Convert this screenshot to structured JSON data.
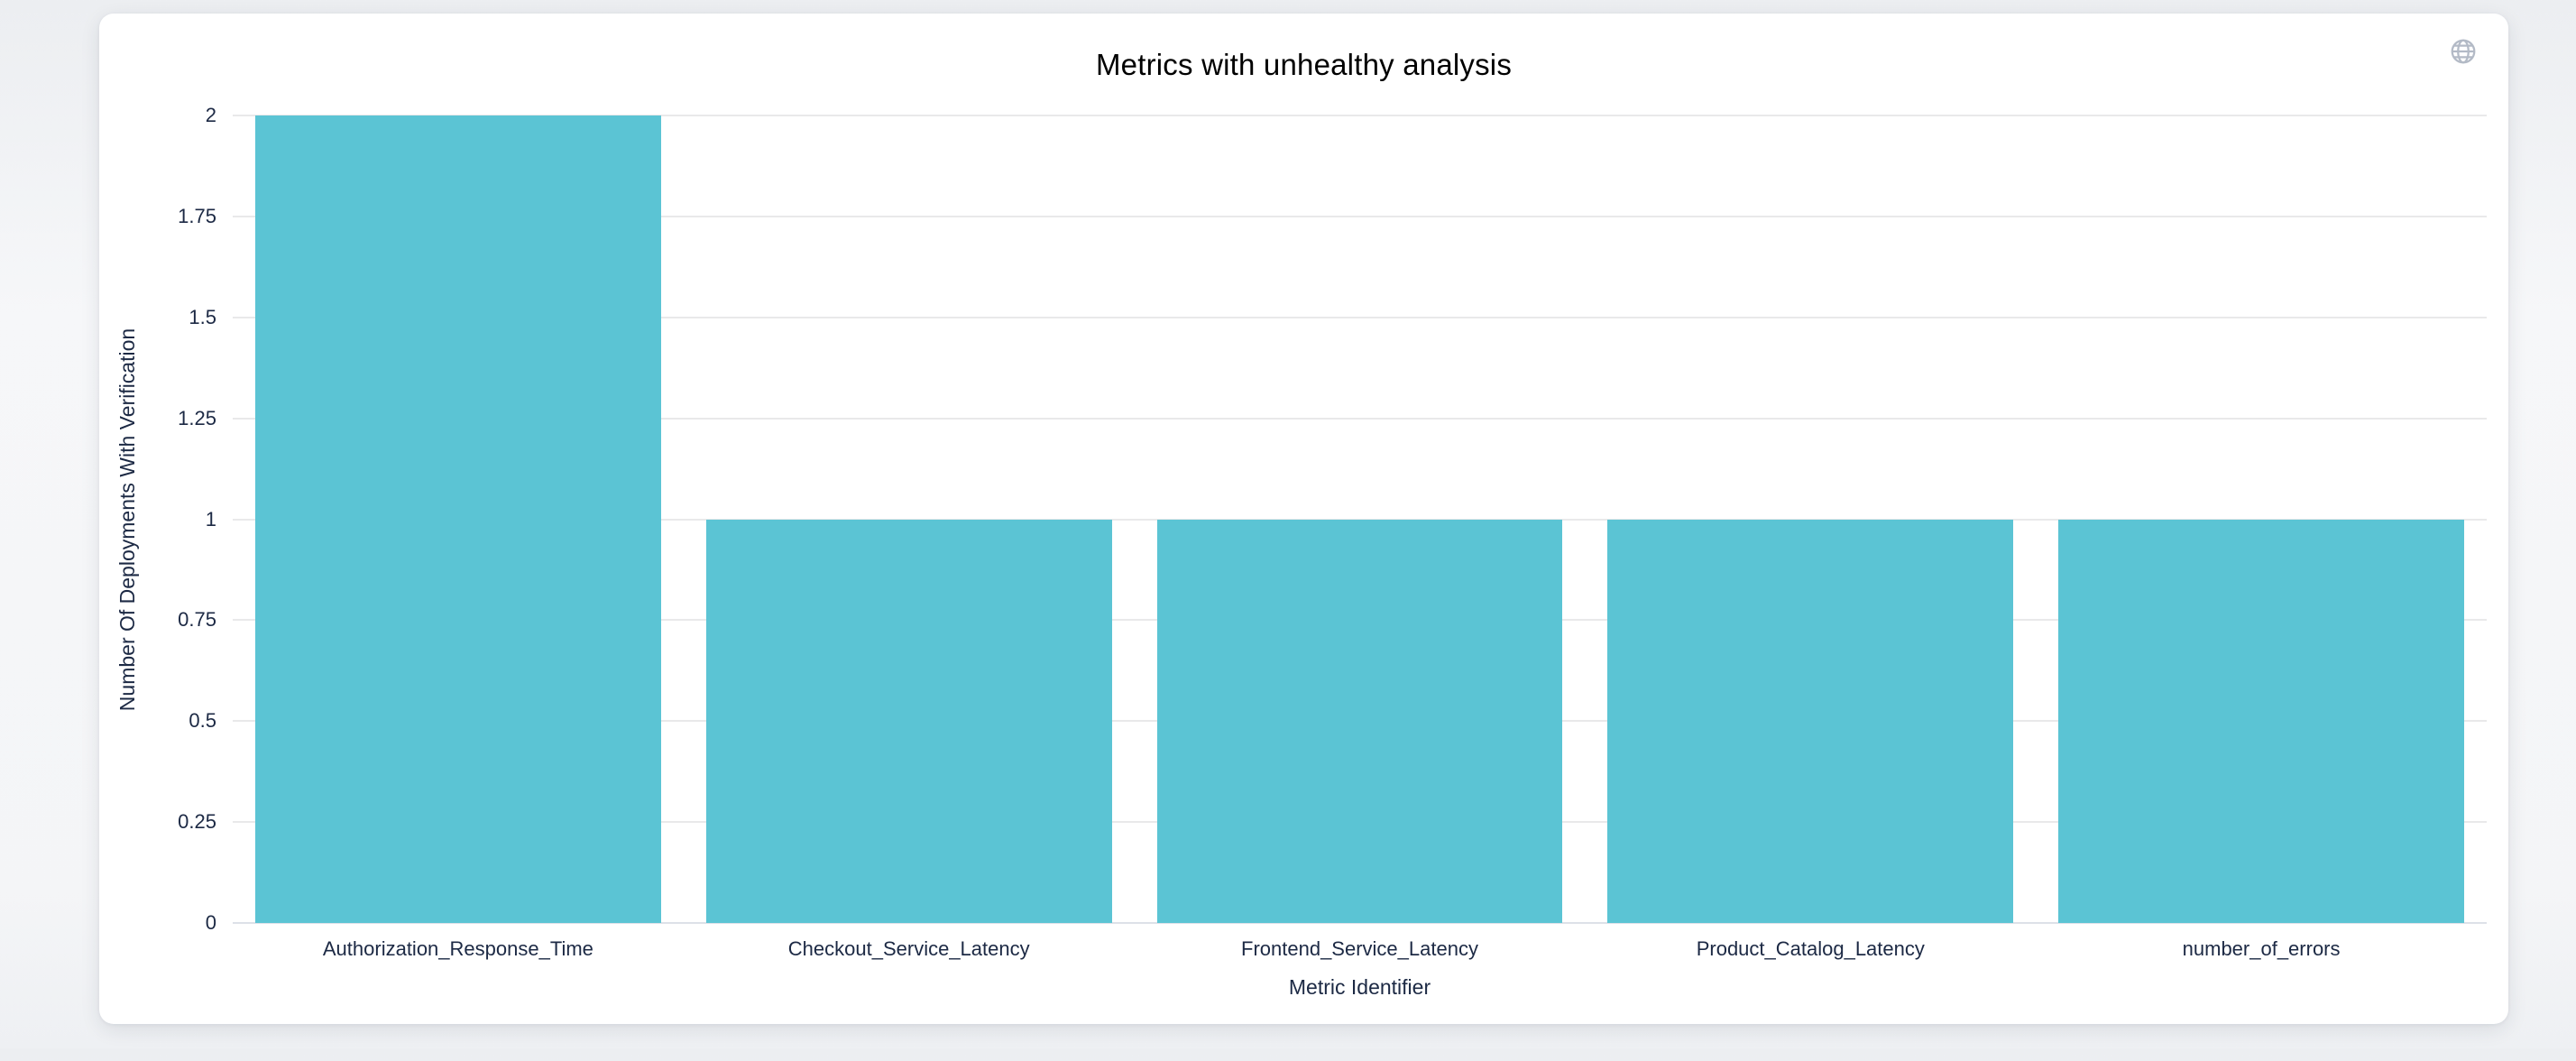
{
  "page": {
    "background": "#f4f5f7"
  },
  "card": {
    "background": "#ffffff"
  },
  "header": {
    "icon": "globe-icon",
    "icon_color": "#b3bac6"
  },
  "chart_data": {
    "type": "bar",
    "title": "Metrics with unhealthy analysis",
    "categories": [
      "Authorization_Response_Time",
      "Checkout_Service_Latency",
      "Frontend_Service_Latency",
      "Product_Catalog_Latency",
      "number_of_errors"
    ],
    "values": [
      2,
      1,
      1,
      1,
      1
    ],
    "xlabel": "Metric Identifier",
    "ylabel": "Number Of Deployments With Verification",
    "ylim": [
      0,
      2
    ],
    "ytick_labels": [
      "0",
      "0.25",
      "0.5",
      "0.75",
      "1",
      "1.25",
      "1.5",
      "1.75",
      "2"
    ],
    "ytick_values": [
      0,
      0.25,
      0.5,
      0.75,
      1,
      1.25,
      1.5,
      1.75,
      2
    ],
    "grid": true,
    "legend": null,
    "bar_color": "#5bc4d4",
    "grid_color": "#e9e9ea",
    "axis_line_color": "#dde1e8",
    "text_color": "#1c2944",
    "bar_width_ratio": 0.9
  }
}
